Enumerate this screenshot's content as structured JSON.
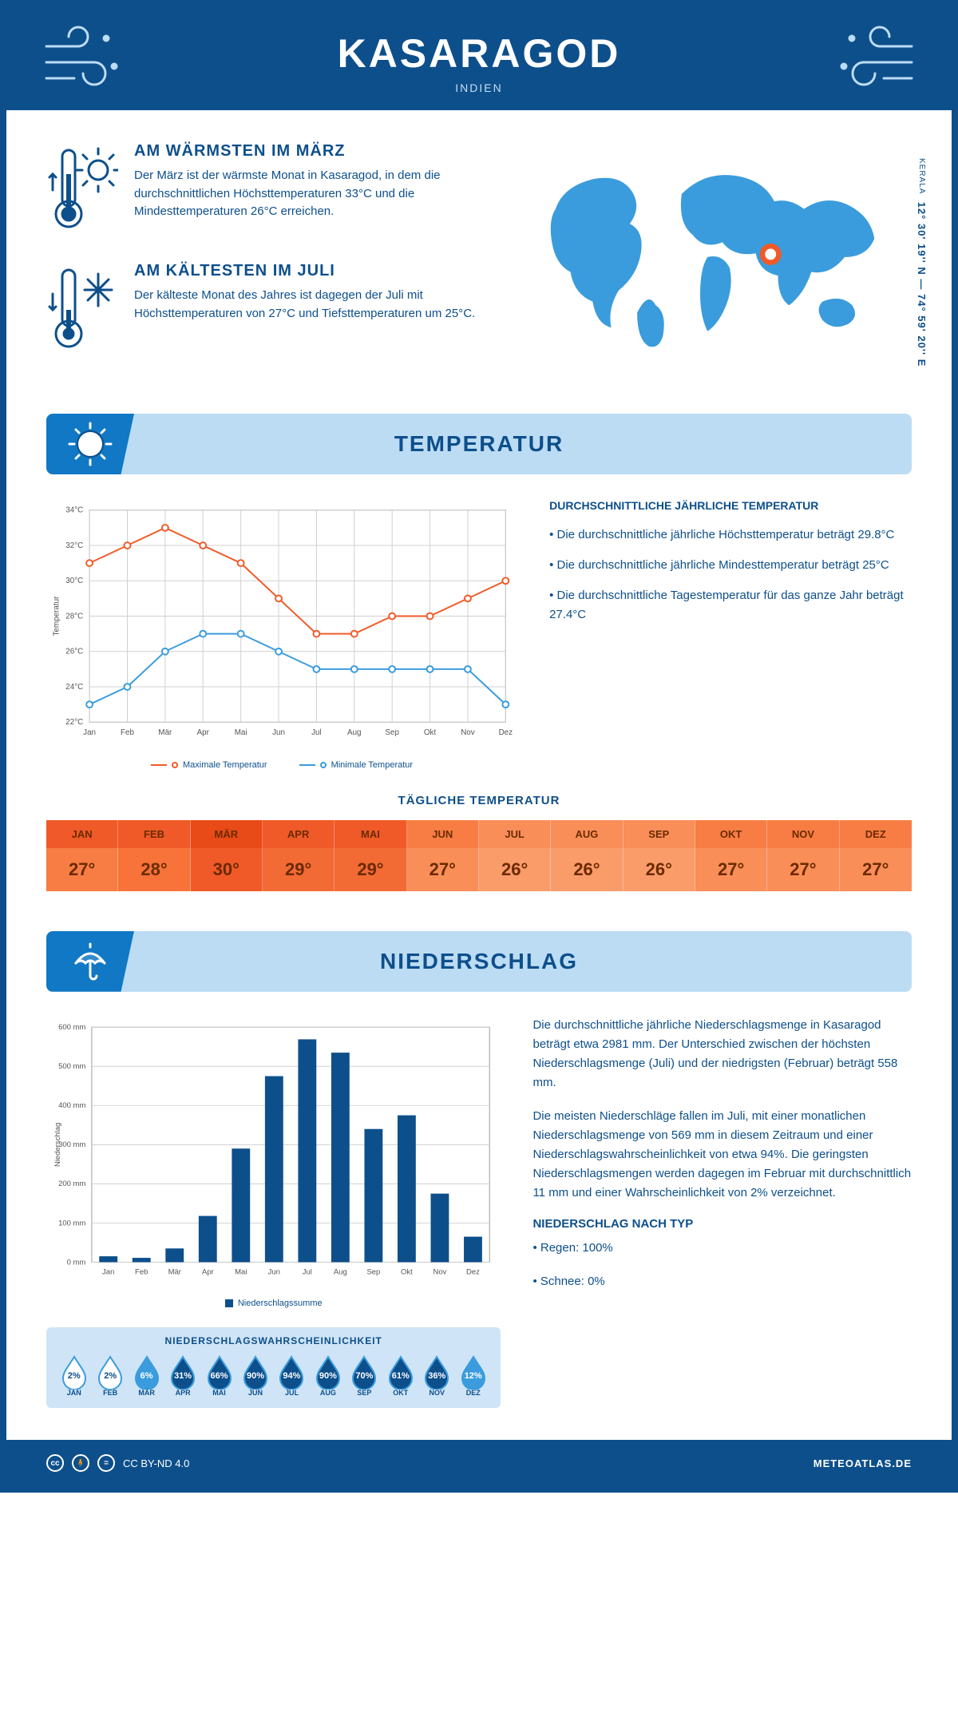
{
  "header": {
    "title": "KASARAGOD",
    "subtitle": "INDIEN"
  },
  "intro": {
    "warm": {
      "heading": "AM WÄRMSTEN IM MÄRZ",
      "text": "Der März ist der wärmste Monat in Kasaragod, in dem die durchschnittlichen Höchsttemperaturen 33°C und die Mindesttemperaturen 26°C erreichen."
    },
    "cold": {
      "heading": "AM KÄLTESTEN IM JULI",
      "text": "Der kälteste Monat des Jahres ist dagegen der Juli mit Höchsttemperaturen von 27°C und Tiefsttemperaturen um 25°C."
    },
    "coords": "12° 30' 19'' N — 74° 59' 20'' E",
    "state": "KERALA",
    "marker": {
      "cx_pct": 66,
      "cy_pct": 54
    }
  },
  "temperature": {
    "section_title": "TEMPERATUR",
    "chart": {
      "type": "line",
      "months": [
        "Jan",
        "Feb",
        "Mär",
        "Apr",
        "Mai",
        "Jun",
        "Jul",
        "Aug",
        "Sep",
        "Okt",
        "Nov",
        "Dez"
      ],
      "max_series": [
        31,
        32,
        33,
        32,
        31,
        29,
        27,
        27,
        28,
        28,
        29,
        30
      ],
      "min_series": [
        23,
        24,
        26,
        27,
        27,
        26,
        25,
        25,
        25,
        25,
        25,
        23
      ],
      "max_color": "#f05a28",
      "min_color": "#3a9cdc",
      "marker_fill": "#ffffff",
      "marker_stroke_w": 2,
      "line_w": 2,
      "ylim": [
        22,
        34
      ],
      "ytick_step": 2,
      "ylabel": "Temperatur",
      "grid_color": "#d0d0d0",
      "border_color": "#999999",
      "label_fontsize": 10,
      "background": "#ffffff",
      "legend": {
        "max": "Maximale Temperatur",
        "min": "Minimale Temperatur"
      }
    },
    "info": {
      "heading": "DURCHSCHNITTLICHE JÄHRLICHE TEMPERATUR",
      "b1": "• Die durchschnittliche jährliche Höchsttemperatur beträgt 29.8°C",
      "b2": "• Die durchschnittliche jährliche Mindesttemperatur beträgt 25°C",
      "b3": "• Die durchschnittliche Tagestemperatur für das ganze Jahr beträgt 27.4°C"
    },
    "daily": {
      "title": "TÄGLICHE TEMPERATUR",
      "months": [
        "JAN",
        "FEB",
        "MÄR",
        "APR",
        "MAI",
        "JUN",
        "JUL",
        "AUG",
        "SEP",
        "OKT",
        "NOV",
        "DEZ"
      ],
      "values": [
        "27°",
        "28°",
        "30°",
        "29°",
        "29°",
        "27°",
        "26°",
        "26°",
        "26°",
        "27°",
        "27°",
        "27°"
      ],
      "header_colors": [
        "#f05a28",
        "#f05a28",
        "#e84a18",
        "#f05a28",
        "#f05a28",
        "#f77d44",
        "#f98e58",
        "#f98e58",
        "#f98e58",
        "#f77d44",
        "#f77d44",
        "#f77d44"
      ],
      "value_colors": [
        "#f77d44",
        "#f7733a",
        "#f05a28",
        "#f26a34",
        "#f26a34",
        "#f98e58",
        "#fa9c6a",
        "#fa9c6a",
        "#fa9c6a",
        "#f98e58",
        "#f98e58",
        "#f98e58"
      ],
      "text_color": "#6b2a00"
    }
  },
  "precip": {
    "section_title": "NIEDERSCHLAG",
    "chart": {
      "type": "bar",
      "months": [
        "Jan",
        "Feb",
        "Mär",
        "Apr",
        "Mai",
        "Jun",
        "Jul",
        "Aug",
        "Sep",
        "Okt",
        "Nov",
        "Dez"
      ],
      "values": [
        15,
        11,
        35,
        118,
        290,
        475,
        569,
        535,
        340,
        375,
        175,
        65
      ],
      "bar_color": "#0d4f8b",
      "ylim": [
        0,
        600
      ],
      "ytick_step": 100,
      "ylabel": "Niederschlag",
      "grid_color": "#d0d0d0",
      "border_color": "#999999",
      "label_fontsize": 10,
      "bar_width_ratio": 0.55,
      "background": "#ffffff",
      "legend": "Niederschlagssumme"
    },
    "text1": "Die durchschnittliche jährliche Niederschlagsmenge in Kasaragod beträgt etwa 2981 mm. Der Unterschied zwischen der höchsten Niederschlagsmenge (Juli) und der niedrigsten (Februar) beträgt 558 mm.",
    "text2": "Die meisten Niederschläge fallen im Juli, mit einer monatlichen Niederschlagsmenge von 569 mm in diesem Zeitraum und einer Niederschlagswahrscheinlichkeit von etwa 94%. Die geringsten Niederschlagsmengen werden dagegen im Februar mit durchschnittlich 11 mm und einer Wahrscheinlichkeit von 2% verzeichnet.",
    "type_heading": "NIEDERSCHLAG NACH TYP",
    "type_b1": "• Regen: 100%",
    "type_b2": "• Schnee: 0%",
    "prob": {
      "title": "NIEDERSCHLAGSWAHRSCHEINLICHKEIT",
      "months": [
        "JAN",
        "FEB",
        "MÄR",
        "APR",
        "MAI",
        "JUN",
        "JUL",
        "AUG",
        "SEP",
        "OKT",
        "NOV",
        "DEZ"
      ],
      "pct": [
        "2%",
        "2%",
        "6%",
        "31%",
        "66%",
        "90%",
        "94%",
        "90%",
        "70%",
        "61%",
        "36%",
        "12%"
      ],
      "fill": [
        "#ffffff",
        "#ffffff",
        "#3a9cdc",
        "#0d4f8b",
        "#0d4f8b",
        "#0d4f8b",
        "#0d4f8b",
        "#0d4f8b",
        "#0d4f8b",
        "#0d4f8b",
        "#0d4f8b",
        "#3a9cdc"
      ],
      "outline": "#3a9cdc",
      "box_bg": "#cfe4f6"
    }
  },
  "footer": {
    "license": "CC BY-ND 4.0",
    "site": "METEOATLAS.DE"
  },
  "colors": {
    "brand": "#0d4f8b",
    "lightblue": "#bcdcf4",
    "midblue": "#1078c4",
    "skyblue": "#3a9cdc"
  }
}
